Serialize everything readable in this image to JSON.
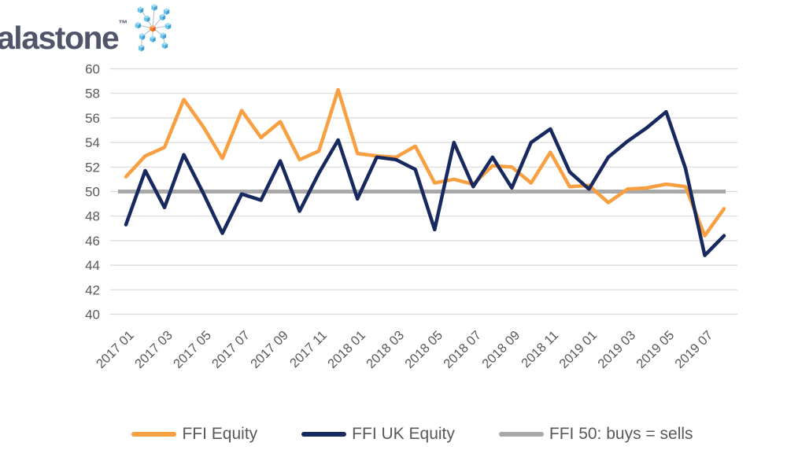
{
  "logo": {
    "text": "alastone",
    "trademark": "™"
  },
  "brand": {
    "logo_text_color": "#50556A",
    "cube_blue": "#56B7E6",
    "cube_blue_light": "#9FDCF2",
    "cube_blue_dark": "#3E9FD0",
    "cube_orange": "#F26522",
    "connector_gray": "#B3BCC7"
  },
  "chart_data": {
    "type": "line",
    "x": [
      "2017 01",
      "2017 02",
      "2017 03",
      "2017 04",
      "2017 05",
      "2017 06",
      "2017 07",
      "2017 08",
      "2017 09",
      "2017 10",
      "2017 11",
      "2017 12",
      "2018 01",
      "2018 02",
      "2018 03",
      "2018 04",
      "2018 05",
      "2018 06",
      "2018 07",
      "2018 08",
      "2018 09",
      "2018 10",
      "2018 11",
      "2018 12",
      "2019 01",
      "2019 02",
      "2019 03",
      "2019 04",
      "2019 05",
      "2019 06",
      "2019 07",
      "2019 08"
    ],
    "x_tick_labels": [
      "2017 01",
      "2017 03",
      "2017 05",
      "2017 07",
      "2017 09",
      "2017 11",
      "2018 01",
      "2018 03",
      "2018 05",
      "2018 07",
      "2018 09",
      "2018 11",
      "2019 01",
      "2019 03",
      "2019 05",
      "2019 07"
    ],
    "x_tick_every": 2,
    "series": [
      {
        "name": "FFI Equity",
        "color": "#F89F42",
        "values": [
          51.2,
          52.9,
          53.6,
          57.5,
          55.3,
          52.7,
          56.6,
          54.4,
          55.7,
          52.6,
          53.3,
          58.3,
          53.1,
          52.9,
          52.8,
          53.7,
          50.7,
          51.0,
          50.6,
          52.1,
          52.0,
          50.7,
          53.2,
          50.4,
          50.5,
          49.1,
          50.2,
          50.3,
          50.6,
          50.4,
          46.4,
          48.6
        ]
      },
      {
        "name": "FFI UK Equity",
        "color": "#17295E",
        "values": [
          47.3,
          51.7,
          48.7,
          53.0,
          49.9,
          46.6,
          49.8,
          49.3,
          52.5,
          48.4,
          51.5,
          54.2,
          49.4,
          52.8,
          52.6,
          51.8,
          46.9,
          54.0,
          50.4,
          52.8,
          50.3,
          54.0,
          55.1,
          51.6,
          50.2,
          52.8,
          54.1,
          55.2,
          56.5,
          51.9,
          44.8,
          46.4
        ]
      }
    ],
    "reference_line": {
      "name": "FFI 50: buys = sells",
      "color": "#A9A9A9",
      "value": 50
    },
    "ylim": [
      40,
      60
    ],
    "ytick_step": 2,
    "grid": true,
    "gridline_color": "#D9D9D9",
    "legend_position": "bottom",
    "title": "",
    "xlabel": "",
    "ylabel": ""
  },
  "legend": {
    "items": [
      {
        "label": "FFI Equity",
        "color": "#F89F42"
      },
      {
        "label": "FFI UK Equity",
        "color": "#17295E"
      },
      {
        "label": "FFI 50: buys = sells",
        "color": "#A9A9A9"
      }
    ]
  }
}
